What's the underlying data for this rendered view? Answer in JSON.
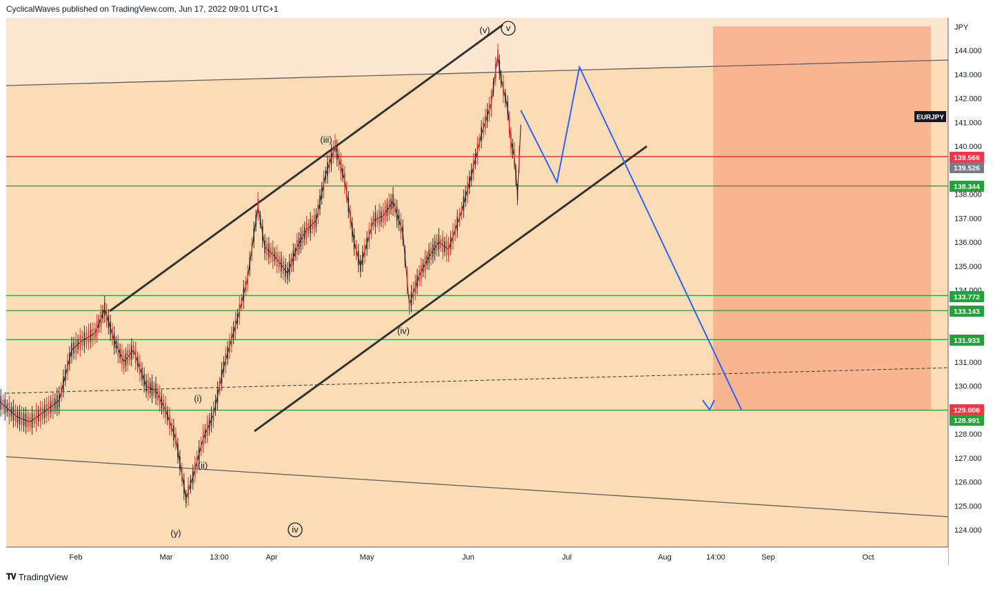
{
  "header": {
    "publisher_text": "CyclicalWaves published on TradingView.com, Jun 17, 2022 09:01 UTC+1"
  },
  "footer": {
    "logo_icon": "tradingview-logo-icon",
    "brand": "TradingView"
  },
  "colors": {
    "background": "#fbdcb5",
    "upper_zone": "#fde6cf",
    "target_zone": "#f8ad8a",
    "red_level": "#f23645",
    "green_level": "#26a03a",
    "projection": "#2962ff",
    "channel": "#333333"
  },
  "chart_data": {
    "type": "line",
    "title": "",
    "symbol": "EURJPY",
    "currency_label": "JPY",
    "ylim": [
      123.4,
      145.2
    ],
    "y_ticks": [
      124,
      125,
      126,
      127,
      128,
      129,
      130,
      131,
      132,
      133,
      134,
      135,
      136,
      137,
      138,
      139,
      140,
      141,
      142,
      143,
      144
    ],
    "y_tick_labels": [
      "124.000",
      "125.000",
      "126.000",
      "127.000",
      "128.000",
      "129.000",
      "130.000",
      "131.000",
      "",
      "",
      "134.000",
      "135.000",
      "136.000",
      "137.000",
      "138.000",
      "",
      "140.000",
      "141.000",
      "142.000",
      "143.000",
      "144.000"
    ],
    "x_labels": [
      "Feb",
      "Mar",
      "13:00",
      "Apr",
      "May",
      "Jun",
      "Jul",
      "Aug",
      "14:00",
      "Sep",
      "Oct"
    ],
    "price_labels": [
      {
        "value": 139.566,
        "label": "139.566",
        "color": "#f23645"
      },
      {
        "value": 139.526,
        "label": "139.526",
        "color": "#787b86"
      },
      {
        "value": 138.344,
        "label": "138.344",
        "color": "#26a03a"
      },
      {
        "value": 133.772,
        "label": "133.772",
        "color": "#26a03a"
      },
      {
        "value": 133.143,
        "label": "133.143",
        "color": "#26a03a"
      },
      {
        "value": 131.933,
        "label": "131.933",
        "color": "#26a03a"
      },
      {
        "value": 129.006,
        "label": "129.006",
        "color": "#f23645"
      },
      {
        "value": 128.991,
        "label": "128.991",
        "color": "#26a03a"
      }
    ],
    "horizontal_levels": [
      {
        "value": 139.566,
        "color": "#f23645"
      },
      {
        "value": 138.344,
        "color": "#26a03a"
      },
      {
        "value": 133.772,
        "color": "#26a03a"
      },
      {
        "value": 133.143,
        "color": "#26a03a"
      },
      {
        "value": 131.933,
        "color": "#26a03a"
      },
      {
        "value": 128.991,
        "color": "#26a03a"
      }
    ],
    "price_path": [
      [
        "Jan 3",
        130.8
      ],
      [
        "Jan 6",
        131.2
      ],
      [
        "Jan 10",
        130.2
      ],
      [
        "Jan 14",
        129.3
      ],
      [
        "Jan 18",
        128.7
      ],
      [
        "Jan 21",
        128.5
      ],
      [
        "Jan 25",
        129.0
      ],
      [
        "Jan 28",
        129.4
      ],
      [
        "Jan 31",
        131.5
      ],
      [
        "Feb 3",
        131.9
      ],
      [
        "Feb 7",
        132.2
      ],
      [
        "Feb 10",
        133.2
      ],
      [
        "Feb 13",
        131.9
      ],
      [
        "Feb 16",
        131.0
      ],
      [
        "Feb 19",
        131.5
      ],
      [
        "Feb 23",
        130.0
      ],
      [
        "Feb 26",
        129.8
      ],
      [
        "Mar 1",
        129.0
      ],
      [
        "Mar 4",
        127.8
      ],
      [
        "Mar 7",
        125.3
      ],
      [
        "Mar 9",
        126.2
      ],
      [
        "Mar 12",
        127.8
      ],
      [
        "Mar 15",
        128.8
      ],
      [
        "Mar 18",
        130.8
      ],
      [
        "Mar 22",
        132.8
      ],
      [
        "Mar 25",
        134.5
      ],
      [
        "Mar 28",
        137.5
      ],
      [
        "Mar 30",
        135.8
      ],
      [
        "Apr 2",
        135.4
      ],
      [
        "Apr 6",
        134.7
      ],
      [
        "Apr 9",
        135.8
      ],
      [
        "Apr 12",
        136.5
      ],
      [
        "Apr 15",
        136.9
      ],
      [
        "Apr 18",
        138.8
      ],
      [
        "Apr 21",
        140.0
      ],
      [
        "Apr 24",
        138.6
      ],
      [
        "Apr 27",
        136.0
      ],
      [
        "Apr 29",
        135.0
      ],
      [
        "May 3",
        136.9
      ],
      [
        "May 6",
        137.1
      ],
      [
        "May 9",
        137.7
      ],
      [
        "May 12",
        136.4
      ],
      [
        "May 14",
        133.4
      ],
      [
        "May 17",
        134.6
      ],
      [
        "May 20",
        135.4
      ],
      [
        "May 23",
        136.0
      ],
      [
        "May 26",
        135.7
      ],
      [
        "May 30",
        137.3
      ],
      [
        "Jun 2",
        138.8
      ],
      [
        "Jun 5",
        140.5
      ],
      [
        "Jun 8",
        141.8
      ],
      [
        "Jun 10",
        143.8
      ],
      [
        "Jun 11",
        142.8
      ],
      [
        "Jun 13",
        141.6
      ],
      [
        "Jun 14",
        140.2
      ],
      [
        "Jun 15",
        139.6
      ],
      [
        "Jun 16",
        138.0
      ],
      [
        "Jun 17",
        140.9
      ]
    ],
    "projection_path": [
      [
        "Jun 17",
        141.5
      ],
      [
        "Jun 28",
        138.5
      ],
      [
        "Jul 5",
        143.3
      ],
      [
        "Aug 24",
        129.0
      ]
    ],
    "wave_labels": [
      {
        "text": "(y)",
        "value": 124.0
      },
      {
        "text": "(ii)",
        "value": 126.7
      },
      {
        "text": "(i)",
        "value": 129.6
      },
      {
        "text": "(iii)",
        "value": 140.3
      },
      {
        "text": "(iv)",
        "value": 132.4
      },
      {
        "text": "(v)",
        "value": 144.8
      },
      {
        "text": "v",
        "value": 144.8
      },
      {
        "text": "iv",
        "value": 124.0
      }
    ],
    "target_zone": {
      "from": 129.006,
      "to": 145.0
    },
    "grid": false,
    "legend": "none"
  }
}
